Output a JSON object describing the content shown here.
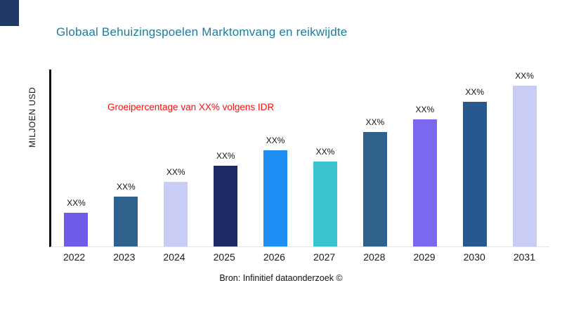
{
  "corner_mark": {
    "color": "#1f3864"
  },
  "title": {
    "text": "Globaal Behuizingspoelen Marktomvang en reikwijdte",
    "color": "#1b7d9e"
  },
  "annotation": {
    "text": "Groeipercentage van XX% volgens IDR",
    "color": "#f2120f"
  },
  "source": {
    "text": "Bron: Infinitief dataonderzoek ©"
  },
  "chart_data": {
    "type": "bar",
    "title": "Globaal Behuizingspoelen Marktomvang en reikwijdte",
    "xlabel": "",
    "ylabel": "MILJOEN USD",
    "categories": [
      "2022",
      "2023",
      "2024",
      "2025",
      "2026",
      "2027",
      "2028",
      "2029",
      "2030",
      "2031"
    ],
    "values": [
      21,
      31,
      40,
      50,
      60,
      53,
      71,
      79,
      90,
      100
    ],
    "value_labels": [
      "XX%",
      "XX%",
      "XX%",
      "XX%",
      "XX%",
      "XX%",
      "XX%",
      "XX%",
      "XX%",
      "XX%"
    ],
    "bar_colors": [
      "#6c5ce8",
      "#2e618c",
      "#c9cdf4",
      "#1e2a63",
      "#1e8ff2",
      "#3bc3cf",
      "#2e618c",
      "#7a68f0",
      "#27598e",
      "#c9cdf4"
    ],
    "ylim": [
      0,
      110
    ],
    "grid": false,
    "legend": false,
    "annotation": "Groeipercentage van XX% volgens IDR",
    "source": "Bron: Infinitief dataonderzoek ©"
  }
}
